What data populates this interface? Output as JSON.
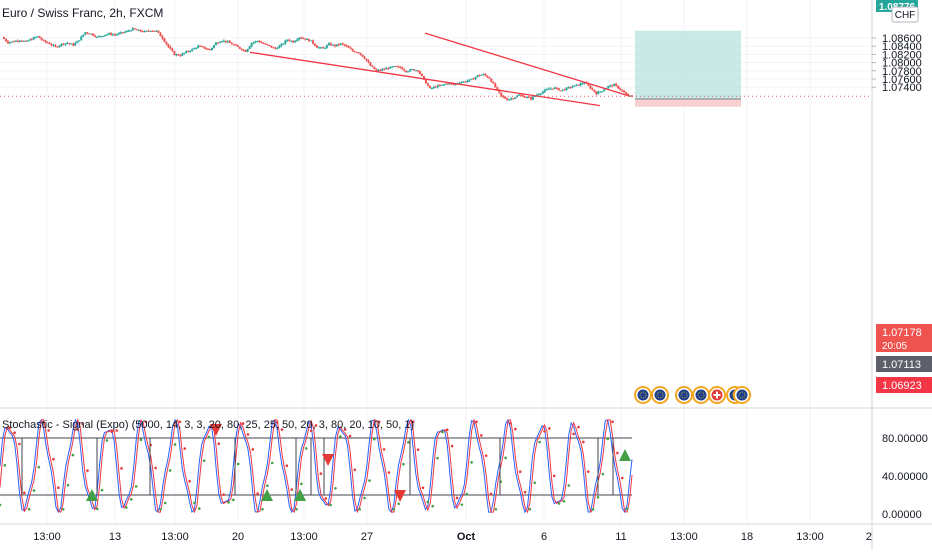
{
  "header": {
    "symbol_title": "Euro / Swiss Franc, 2h, FXCM"
  },
  "price_axis": {
    "currency": "CHF",
    "ticks": [
      "1.08600",
      "1.08400",
      "1.08200",
      "1.08000",
      "1.07800",
      "1.07600",
      "1.07400"
    ],
    "top_badge": "1.08776",
    "last_price": "1.07178",
    "countdown": "20:05",
    "entry_badge": "1.07113",
    "stop_badge": "1.06923"
  },
  "indicator": {
    "title": "Stochastic - Signal (Expo) (5000, 14, 3, 3, 20, 80, 25, 25, 50, 20, 3, 80, 20, 10, 50, 1)",
    "ticks": [
      "80.00000",
      "40.00000",
      "0.00000"
    ]
  },
  "time_axis": {
    "labels": [
      "13:00",
      "13",
      "13:00",
      "20",
      "13:00",
      "27",
      "Oct",
      "6",
      "11",
      "13:00",
      "18",
      "13:00",
      "2"
    ]
  },
  "events_icons": [
    "eur-flag-icon",
    "eur-flag-icon",
    "eur-flag-icon",
    "eur-flag-icon",
    "chf-flag-icon",
    "eur-flag-icon",
    "eur-flag-icon"
  ],
  "colors": {
    "up": "#26a69a",
    "down": "#ef5350",
    "wedge": "#f23645",
    "profit_zone": "#b2dfdb",
    "loss_zone": "#f8c8c8",
    "stoch_k": "#2962ff",
    "stoch_d": "#f23645",
    "dot_green": "#43a047",
    "dot_red": "#e53935",
    "last_price_bg": "#ef5350"
  },
  "chart_data": {
    "type": "candlestick",
    "symbol": "EURCHF",
    "timeframe": "2h",
    "price_range": [
      1.0686,
      1.0882
    ],
    "wedge_lines": [
      {
        "from": [
          "13 Sep",
          1.0825
        ],
        "to": [
          "12 Oct",
          1.0695
        ]
      },
      {
        "from": [
          "29 Sep",
          1.0872
        ],
        "to": [
          "11 Oct",
          1.0718
        ]
      }
    ],
    "position": {
      "type": "long",
      "entry": 1.07113,
      "target": 1.08776,
      "stop": 1.06923
    },
    "price_path": [
      1.0862,
      1.0849,
      1.0852,
      1.0855,
      1.0851,
      1.0858,
      1.0864,
      1.0852,
      1.0846,
      1.0838,
      1.0845,
      1.0848,
      1.0843,
      1.0856,
      1.0874,
      1.087,
      1.0862,
      1.0867,
      1.087,
      1.0868,
      1.0872,
      1.0876,
      1.0882,
      1.0878,
      1.0875,
      1.0879,
      1.0877,
      1.086,
      1.0838,
      1.082,
      1.0818,
      1.0826,
      1.0832,
      1.084,
      1.0836,
      1.0831,
      1.0848,
      1.0854,
      1.085,
      1.0843,
      1.0835,
      1.0828,
      1.0848,
      1.0853,
      1.0846,
      1.084,
      1.0834,
      1.0843,
      1.0856,
      1.0851,
      1.0862,
      1.0858,
      1.0852,
      1.0838,
      1.0834,
      1.0845,
      1.0841,
      1.0846,
      1.0839,
      1.0828,
      1.0825,
      1.0811,
      1.0792,
      1.078,
      1.0783,
      1.0787,
      1.079,
      1.0788,
      1.0779,
      1.0783,
      1.0781,
      1.0758,
      1.0736,
      1.0742,
      1.0745,
      1.075,
      1.0746,
      1.0752,
      1.0754,
      1.0759,
      1.0768,
      1.0771,
      1.0762,
      1.074,
      1.0718,
      1.071,
      1.0714,
      1.0721,
      1.0717,
      1.0712,
      1.0722,
      1.0729,
      1.0736,
      1.0738,
      1.0732,
      1.0737,
      1.0742,
      1.0746,
      1.0752,
      1.0738,
      1.0725,
      1.0732,
      1.0742,
      1.0746,
      1.0735,
      1.0722,
      1.0716
    ],
    "stochastic": {
      "levels": [
        80,
        20
      ],
      "signals": [
        {
          "type": "buy",
          "index": 9
        },
        {
          "type": "sell",
          "index": 22
        },
        {
          "type": "buy",
          "index": 30
        },
        {
          "type": "buy",
          "index": 36
        },
        {
          "type": "sell",
          "index": 37
        },
        {
          "type": "sell",
          "index": 45
        },
        {
          "type": "buy",
          "index": 51
        },
        {
          "type": "buy",
          "index": 101
        }
      ]
    }
  }
}
